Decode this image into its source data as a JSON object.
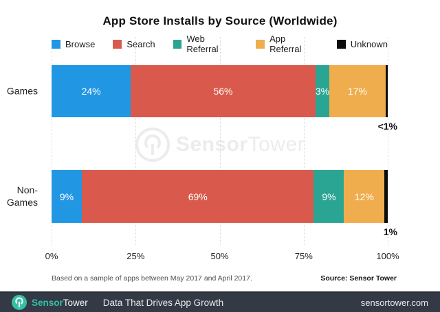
{
  "title": "App Store Installs by Source (Worldwide)",
  "chart_data": {
    "type": "bar",
    "stacked": true,
    "orientation": "horizontal",
    "grid": "vertical-dotted",
    "legend_position": "top-center",
    "categories": [
      "Games",
      "Non-\nGames"
    ],
    "series": [
      {
        "name": "Browse",
        "color": "#2196e3",
        "values": [
          24,
          9
        ],
        "labels": [
          "24%",
          "9%"
        ]
      },
      {
        "name": "Search",
        "color": "#d95a4c",
        "values": [
          56,
          69
        ],
        "labels": [
          "56%",
          "69%"
        ]
      },
      {
        "name": "Web Referral",
        "color": "#2ba593",
        "values": [
          3,
          9
        ],
        "labels": [
          "3%",
          "9%"
        ]
      },
      {
        "name": "App Referral",
        "color": "#f0ad4e",
        "values": [
          17,
          12
        ],
        "labels": [
          "17%",
          "12%"
        ]
      },
      {
        "name": "Unknown",
        "color": "#0c0c0c",
        "values": [
          0.7,
          1
        ],
        "labels": [
          "<1%",
          "1%"
        ],
        "label_outside": true
      }
    ],
    "x_ticks": [
      0,
      25,
      50,
      75,
      100
    ],
    "x_tick_labels": [
      "0%",
      "25%",
      "50%",
      "75%",
      "100%"
    ],
    "xlim": [
      0,
      100
    ]
  },
  "watermark": {
    "bold_part": "Sensor",
    "light_part": "Tower",
    "color": "#ececec"
  },
  "footnote": {
    "note": "Based on a sample of apps between May 2017 and April 2017.",
    "source": "Source: Sensor Tower"
  },
  "footer": {
    "brand_sensor": "Sensor",
    "brand_tower": "Tower",
    "tagline": "Data That Drives App Growth",
    "url": "sensortower.com",
    "accent_color": "#35c0a6",
    "background": "#333a45"
  }
}
